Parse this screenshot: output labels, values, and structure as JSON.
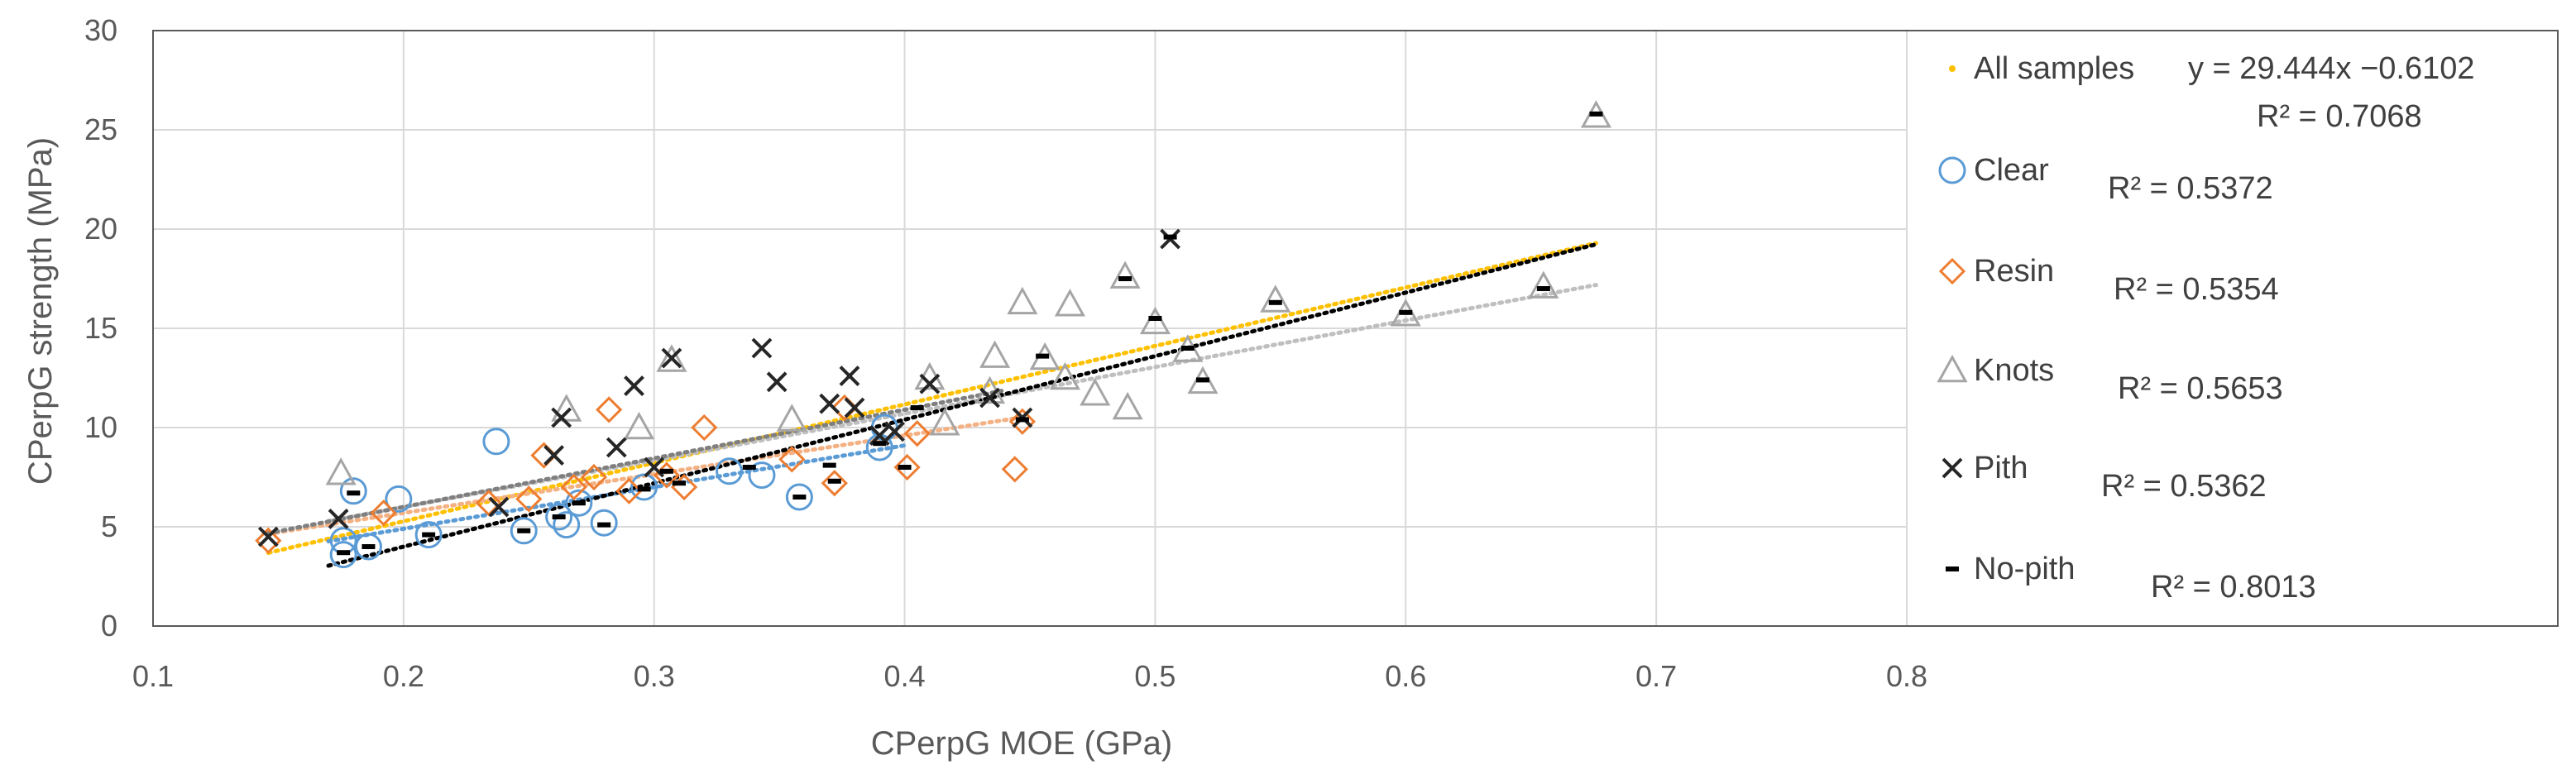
{
  "chart_data": {
    "type": "scatter",
    "title": "",
    "xlabel": "CPerpG MOE (GPa)",
    "ylabel": "CPerpG strength (MPa)",
    "xlim": [
      0.1,
      0.8
    ],
    "ylim": [
      0,
      30
    ],
    "xticks": [
      "0.1",
      "0.2",
      "0.3",
      "0.4",
      "0.5",
      "0.6",
      "0.7",
      "0.8"
    ],
    "yticks": [
      "0",
      "5",
      "10",
      "15",
      "20",
      "25",
      "30"
    ],
    "grid": true,
    "legend_position": "right",
    "series": [
      {
        "name": "All samples",
        "marker": "dot",
        "color": "#FFC000",
        "equation": "y = 29.444x −0.6102",
        "r2": "R² = 0.7068",
        "trend": {
          "slope": 29.444,
          "intercept": -0.6102,
          "x_range": [
            0.146,
            0.676
          ],
          "color": "#FFC000"
        },
        "points": []
      },
      {
        "name": "Clear",
        "marker": "circle",
        "color": "#5B9BD5",
        "r2": "R² = 0.5372",
        "trend": {
          "slope": 21.0,
          "intercept": 0.7,
          "x_range": [
            0.17,
            0.4
          ],
          "color": "#5B9BD5"
        },
        "points": [
          [
            0.176,
            3.6
          ],
          [
            0.176,
            4.3
          ],
          [
            0.18,
            6.8
          ],
          [
            0.186,
            4.0
          ],
          [
            0.198,
            6.4
          ],
          [
            0.21,
            4.6
          ],
          [
            0.237,
            9.3
          ],
          [
            0.248,
            4.8
          ],
          [
            0.262,
            5.5
          ],
          [
            0.265,
            5.1
          ],
          [
            0.27,
            6.2
          ],
          [
            0.28,
            5.2
          ],
          [
            0.296,
            7.0
          ],
          [
            0.33,
            7.8
          ],
          [
            0.343,
            7.6
          ],
          [
            0.358,
            6.5
          ],
          [
            0.39,
            9.0
          ],
          [
            0.392,
            10.0
          ]
        ]
      },
      {
        "name": "Resin",
        "marker": "diamond",
        "color": "#ED7D31",
        "r2": "R² = 0.5354",
        "trend": {
          "slope": 19.5,
          "intercept": 1.8,
          "x_range": [
            0.146,
            0.447
          ],
          "color": "#F4B183"
        },
        "points": [
          [
            0.146,
            4.3
          ],
          [
            0.192,
            5.7
          ],
          [
            0.234,
            6.2
          ],
          [
            0.25,
            6.4
          ],
          [
            0.256,
            8.6
          ],
          [
            0.268,
            7.0
          ],
          [
            0.276,
            7.5
          ],
          [
            0.282,
            10.9
          ],
          [
            0.29,
            6.8
          ],
          [
            0.305,
            7.6
          ],
          [
            0.312,
            7.0
          ],
          [
            0.32,
            10.0
          ],
          [
            0.355,
            8.4
          ],
          [
            0.372,
            7.2
          ],
          [
            0.376,
            11.0
          ],
          [
            0.401,
            8.0
          ],
          [
            0.405,
            9.7
          ],
          [
            0.444,
            7.9
          ],
          [
            0.447,
            10.3
          ]
        ]
      },
      {
        "name": "Knots",
        "marker": "triangle",
        "color": "#A5A5A5",
        "r2": "R² = 0.5653",
        "trend": {
          "slope": 23.5,
          "intercept": 1.3,
          "x_range": [
            0.17,
            0.676
          ],
          "color": "#BFBFBF"
        },
        "points": [
          [
            0.175,
            7.7
          ],
          [
            0.265,
            10.9
          ],
          [
            0.294,
            10.0
          ],
          [
            0.307,
            13.4
          ],
          [
            0.355,
            10.4
          ],
          [
            0.41,
            12.5
          ],
          [
            0.416,
            10.2
          ],
          [
            0.434,
            11.8
          ],
          [
            0.436,
            13.6
          ],
          [
            0.447,
            16.3
          ],
          [
            0.456,
            13.5
          ],
          [
            0.464,
            12.5
          ],
          [
            0.466,
            16.2
          ],
          [
            0.476,
            11.7
          ],
          [
            0.488,
            17.6
          ],
          [
            0.489,
            11.0
          ],
          [
            0.5,
            15.3
          ],
          [
            0.513,
            13.9
          ],
          [
            0.519,
            12.3
          ],
          [
            0.548,
            16.4
          ],
          [
            0.6,
            15.7
          ],
          [
            0.655,
            17.1
          ],
          [
            0.676,
            25.7
          ]
        ]
      },
      {
        "name": "Pith",
        "marker": "x",
        "color": "#262626",
        "r2": "R² = 0.5362",
        "trend": {
          "slope": 24.5,
          "intercept": 1.1,
          "x_range": [
            0.146,
            0.44
          ],
          "color": "#7F7F7F"
        },
        "points": [
          [
            0.146,
            4.5
          ],
          [
            0.174,
            5.4
          ],
          [
            0.238,
            6.0
          ],
          [
            0.26,
            8.6
          ],
          [
            0.263,
            10.5
          ],
          [
            0.285,
            9.0
          ],
          [
            0.292,
            12.1
          ],
          [
            0.3,
            8.0
          ],
          [
            0.307,
            13.5
          ],
          [
            0.343,
            14.0
          ],
          [
            0.349,
            12.3
          ],
          [
            0.37,
            11.2
          ],
          [
            0.378,
            12.6
          ],
          [
            0.38,
            11.0
          ],
          [
            0.39,
            9.6
          ],
          [
            0.396,
            9.8
          ],
          [
            0.41,
            12.2
          ],
          [
            0.434,
            11.5
          ],
          [
            0.447,
            10.5
          ],
          [
            0.506,
            19.5
          ]
        ]
      },
      {
        "name": "No-pith",
        "marker": "dash",
        "color": "#000000",
        "r2": "R² = 0.8013",
        "trend": {
          "slope": 32.0,
          "intercept": -2.4,
          "x_range": [
            0.17,
            0.676
          ],
          "color": "#000000"
        },
        "points": [
          [
            0.176,
            3.7
          ],
          [
            0.18,
            6.7
          ],
          [
            0.186,
            4.0
          ],
          [
            0.21,
            4.6
          ],
          [
            0.248,
            4.8
          ],
          [
            0.262,
            5.5
          ],
          [
            0.27,
            6.2
          ],
          [
            0.28,
            5.1
          ],
          [
            0.296,
            6.9
          ],
          [
            0.305,
            7.8
          ],
          [
            0.31,
            7.2
          ],
          [
            0.338,
            8.0
          ],
          [
            0.358,
            6.5
          ],
          [
            0.37,
            8.1
          ],
          [
            0.372,
            7.3
          ],
          [
            0.39,
            9.2
          ],
          [
            0.4,
            8.0
          ],
          [
            0.405,
            11.0
          ],
          [
            0.447,
            10.4
          ],
          [
            0.455,
            13.6
          ],
          [
            0.488,
            17.5
          ],
          [
            0.5,
            15.5
          ],
          [
            0.506,
            19.6
          ],
          [
            0.513,
            14.0
          ],
          [
            0.519,
            12.4
          ],
          [
            0.548,
            16.3
          ],
          [
            0.6,
            15.8
          ],
          [
            0.655,
            17.0
          ],
          [
            0.676,
            25.8
          ]
        ]
      }
    ]
  }
}
